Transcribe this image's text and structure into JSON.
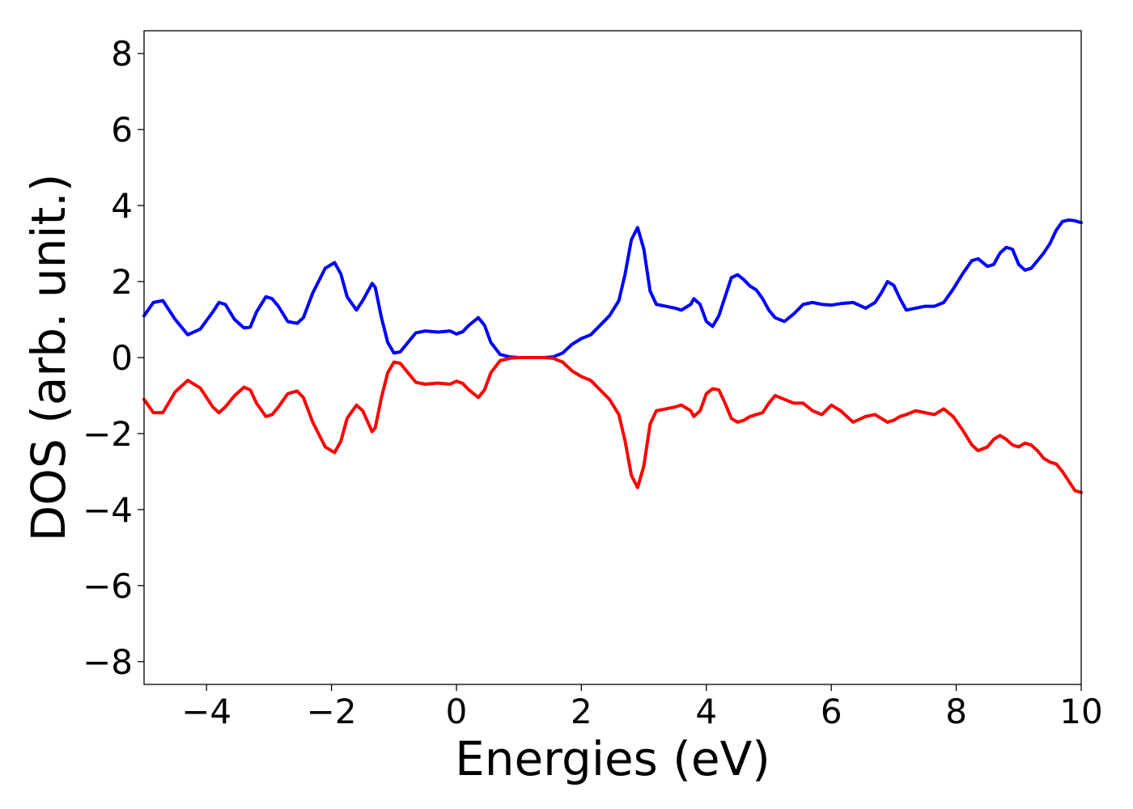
{
  "chart_data": {
    "type": "line",
    "xlabel": "Energies (eV)",
    "ylabel": "DOS (arb. unit.)",
    "xlim": [
      -5,
      10
    ],
    "ylim": [
      -8.6,
      8.6
    ],
    "xticks": [
      -4,
      -2,
      0,
      2,
      4,
      6,
      8,
      10
    ],
    "xtick_labels": [
      "−4",
      "−2",
      "0",
      "2",
      "4",
      "6",
      "8",
      "10"
    ],
    "yticks": [
      8,
      6,
      4,
      2,
      0,
      -2,
      -4,
      -6,
      -8
    ],
    "ytick_labels": [
      "8",
      "6",
      "4",
      "2",
      "0",
      "−2",
      "−4",
      "−6",
      "−8"
    ],
    "grid": false,
    "series": [
      {
        "color": "#0000ff",
        "x": [
          -5.0,
          -4.85,
          -4.7,
          -4.5,
          -4.3,
          -4.1,
          -3.9,
          -3.8,
          -3.7,
          -3.55,
          -3.4,
          -3.3,
          -3.2,
          -3.05,
          -2.95,
          -2.85,
          -2.7,
          -2.55,
          -2.45,
          -2.3,
          -2.1,
          -1.95,
          -1.85,
          -1.75,
          -1.6,
          -1.5,
          -1.35,
          -1.3,
          -1.2,
          -1.1,
          -1.0,
          -0.9,
          -0.8,
          -0.65,
          -0.5,
          -0.3,
          -0.1,
          0.0,
          0.1,
          0.2,
          0.35,
          0.45,
          0.55,
          0.7,
          0.85,
          1.0,
          1.2,
          1.4,
          1.55,
          1.7,
          1.85,
          2.0,
          2.15,
          2.3,
          2.45,
          2.6,
          2.7,
          2.8,
          2.9,
          3.0,
          3.1,
          3.2,
          3.35,
          3.5,
          3.6,
          3.75,
          3.8,
          3.9,
          4.0,
          4.1,
          4.2,
          4.3,
          4.4,
          4.5,
          4.6,
          4.7,
          4.8,
          4.9,
          5.0,
          5.1,
          5.25,
          5.4,
          5.55,
          5.7,
          5.85,
          6.0,
          6.15,
          6.35,
          6.55,
          6.7,
          6.8,
          6.9,
          7.0,
          7.1,
          7.2,
          7.35,
          7.5,
          7.65,
          7.8,
          7.95,
          8.1,
          8.25,
          8.35,
          8.5,
          8.6,
          8.7,
          8.8,
          8.9,
          9.0,
          9.1,
          9.2,
          9.3,
          9.4,
          9.5,
          9.6,
          9.7,
          9.8,
          9.9,
          10.0
        ],
        "y": [
          1.1,
          1.45,
          1.5,
          1.0,
          0.6,
          0.75,
          1.2,
          1.45,
          1.4,
          1.0,
          0.78,
          0.8,
          1.2,
          1.6,
          1.55,
          1.35,
          0.95,
          0.9,
          1.05,
          1.7,
          2.35,
          2.5,
          2.2,
          1.6,
          1.25,
          1.5,
          1.95,
          1.85,
          1.05,
          0.4,
          0.12,
          0.15,
          0.35,
          0.65,
          0.7,
          0.67,
          0.7,
          0.62,
          0.68,
          0.85,
          1.05,
          0.85,
          0.4,
          0.08,
          0.02,
          0.0,
          0.0,
          0.0,
          0.02,
          0.12,
          0.35,
          0.5,
          0.6,
          0.85,
          1.1,
          1.5,
          2.2,
          3.1,
          3.42,
          2.85,
          1.75,
          1.4,
          1.35,
          1.3,
          1.25,
          1.4,
          1.55,
          1.4,
          0.95,
          0.82,
          1.1,
          1.6,
          2.1,
          2.18,
          2.05,
          1.88,
          1.78,
          1.55,
          1.25,
          1.05,
          0.95,
          1.15,
          1.4,
          1.45,
          1.4,
          1.38,
          1.42,
          1.45,
          1.3,
          1.45,
          1.7,
          2.0,
          1.9,
          1.55,
          1.25,
          1.3,
          1.35,
          1.35,
          1.45,
          1.8,
          2.2,
          2.55,
          2.6,
          2.4,
          2.45,
          2.75,
          2.9,
          2.85,
          2.45,
          2.3,
          2.35,
          2.55,
          2.75,
          3.0,
          3.35,
          3.58,
          3.62,
          3.6,
          3.55
        ]
      },
      {
        "color": "#ff0000",
        "x": [
          -5.0,
          -4.85,
          -4.7,
          -4.5,
          -4.3,
          -4.1,
          -3.9,
          -3.8,
          -3.7,
          -3.55,
          -3.4,
          -3.3,
          -3.2,
          -3.05,
          -2.95,
          -2.85,
          -2.7,
          -2.55,
          -2.45,
          -2.3,
          -2.1,
          -1.95,
          -1.85,
          -1.75,
          -1.6,
          -1.5,
          -1.35,
          -1.3,
          -1.2,
          -1.1,
          -1.0,
          -0.9,
          -0.8,
          -0.65,
          -0.5,
          -0.3,
          -0.1,
          0.0,
          0.1,
          0.2,
          0.35,
          0.45,
          0.55,
          0.7,
          0.85,
          1.0,
          1.2,
          1.4,
          1.55,
          1.7,
          1.85,
          2.0,
          2.15,
          2.3,
          2.45,
          2.6,
          2.7,
          2.8,
          2.9,
          3.0,
          3.1,
          3.2,
          3.35,
          3.5,
          3.6,
          3.75,
          3.8,
          3.9,
          4.0,
          4.1,
          4.2,
          4.3,
          4.4,
          4.5,
          4.6,
          4.7,
          4.8,
          4.9,
          5.0,
          5.1,
          5.25,
          5.4,
          5.55,
          5.7,
          5.85,
          6.0,
          6.15,
          6.35,
          6.55,
          6.7,
          6.8,
          6.9,
          7.0,
          7.1,
          7.2,
          7.35,
          7.5,
          7.65,
          7.8,
          7.95,
          8.1,
          8.25,
          8.35,
          8.5,
          8.6,
          8.7,
          8.8,
          8.9,
          9.0,
          9.1,
          9.2,
          9.3,
          9.4,
          9.5,
          9.6,
          9.7,
          9.8,
          9.9,
          10.0
        ],
        "y": [
          -1.1,
          -1.45,
          -1.45,
          -0.9,
          -0.6,
          -0.8,
          -1.3,
          -1.45,
          -1.3,
          -1.0,
          -0.78,
          -0.85,
          -1.2,
          -1.55,
          -1.5,
          -1.3,
          -0.95,
          -0.88,
          -1.05,
          -1.7,
          -2.35,
          -2.5,
          -2.2,
          -1.6,
          -1.25,
          -1.4,
          -1.95,
          -1.85,
          -1.05,
          -0.4,
          -0.12,
          -0.15,
          -0.35,
          -0.65,
          -0.7,
          -0.67,
          -0.7,
          -0.62,
          -0.68,
          -0.85,
          -1.05,
          -0.85,
          -0.4,
          -0.08,
          -0.02,
          0.0,
          0.0,
          0.0,
          -0.02,
          -0.12,
          -0.35,
          -0.5,
          -0.6,
          -0.85,
          -1.1,
          -1.5,
          -2.2,
          -3.1,
          -3.42,
          -2.85,
          -1.75,
          -1.4,
          -1.35,
          -1.3,
          -1.25,
          -1.4,
          -1.55,
          -1.4,
          -0.95,
          -0.82,
          -0.85,
          -1.2,
          -1.6,
          -1.7,
          -1.65,
          -1.55,
          -1.5,
          -1.45,
          -1.2,
          -1.0,
          -1.1,
          -1.2,
          -1.2,
          -1.4,
          -1.5,
          -1.25,
          -1.4,
          -1.7,
          -1.55,
          -1.5,
          -1.6,
          -1.7,
          -1.65,
          -1.55,
          -1.5,
          -1.4,
          -1.45,
          -1.5,
          -1.35,
          -1.55,
          -1.9,
          -2.3,
          -2.45,
          -2.35,
          -2.15,
          -2.05,
          -2.15,
          -2.3,
          -2.35,
          -2.25,
          -2.3,
          -2.45,
          -2.65,
          -2.75,
          -2.8,
          -3.0,
          -3.25,
          -3.5,
          -3.55
        ]
      }
    ]
  }
}
